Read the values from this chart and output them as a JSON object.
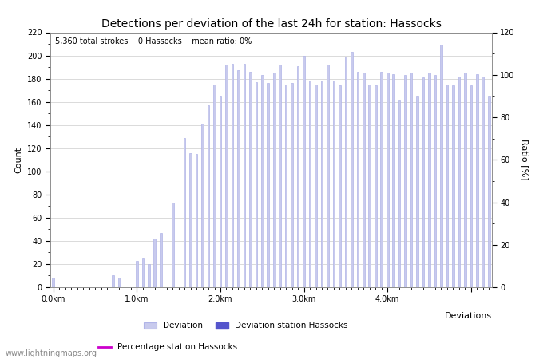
{
  "title": "Detections per deviation of the last 24h for station: Hassocks",
  "subtitle": "5,360 total strokes    0 Hassocks    mean ratio: 0%",
  "ylabel_left": "Count",
  "ylabel_right": "Ratio [%]",
  "bar_values": [
    8,
    0,
    0,
    0,
    0,
    0,
    0,
    0,
    0,
    0,
    10,
    8,
    0,
    0,
    23,
    25,
    20,
    42,
    47,
    0,
    73,
    0,
    129,
    116,
    115,
    141,
    157,
    175,
    165,
    192,
    193,
    187,
    193,
    186,
    177,
    183,
    176,
    185,
    192,
    175,
    176,
    191,
    200,
    178,
    175,
    178,
    192,
    178,
    174,
    199,
    203,
    186,
    185,
    175,
    174,
    186,
    185,
    184,
    162,
    183,
    185,
    165,
    181,
    185,
    183,
    209,
    175,
    174,
    182,
    185,
    174,
    184,
    182,
    165
  ],
  "x_tick_positions": [
    0,
    14,
    28,
    42,
    56,
    70
  ],
  "x_tick_labels": [
    "0.0km",
    "1.0km",
    "2.0km",
    "3.0km",
    "4.0km",
    ""
  ],
  "ylim_left": [
    0,
    220
  ],
  "ylim_right": [
    0,
    120
  ],
  "yticks_left": [
    0,
    20,
    40,
    60,
    80,
    100,
    120,
    140,
    160,
    180,
    200,
    220
  ],
  "yticks_right": [
    0,
    20,
    40,
    60,
    80,
    100,
    120
  ],
  "bar_color": "#c8caed",
  "bar_edge_color": "#b0b4e8",
  "station_bar_color": "#5555cc",
  "percentage_line_color": "#cc00cc",
  "background_color": "#ffffff",
  "grid_color": "#cccccc",
  "legend_deviation_label": "Deviation",
  "legend_station_label": "Deviation station Hassocks",
  "legend_percentage_label": "Percentage station Hassocks",
  "watermark": "www.lightningmaps.org",
  "x_axis_extra_label": "Deviations"
}
